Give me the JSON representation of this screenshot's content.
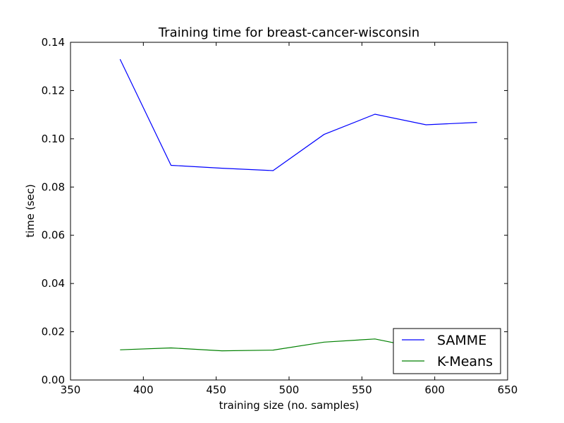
{
  "chart_data": {
    "type": "line",
    "title": "Training time for breast-cancer-wisconsin",
    "xlabel": "training size (no. samples)",
    "ylabel": "time (sec)",
    "xlim": [
      350,
      650
    ],
    "ylim": [
      0,
      0.14
    ],
    "x_ticks": [
      350,
      400,
      450,
      500,
      550,
      600,
      650
    ],
    "x_tick_labels": [
      "350",
      "400",
      "450",
      "500",
      "550",
      "600",
      "650"
    ],
    "y_ticks": [
      0.0,
      0.02,
      0.04,
      0.06,
      0.08,
      0.1,
      0.12,
      0.14
    ],
    "y_tick_labels": [
      "0.00",
      "0.02",
      "0.04",
      "0.06",
      "0.08",
      "0.10",
      "0.12",
      "0.14"
    ],
    "grid": false,
    "legend_position": "lower-right",
    "x": [
      384,
      419,
      454,
      489,
      524,
      559,
      594,
      629
    ],
    "series": [
      {
        "name": "SAMME",
        "color": "#0000ff",
        "values": [
          0.133,
          0.089,
          0.0878,
          0.0868,
          0.1018,
          0.1102,
          0.1058,
          0.1068
        ]
      },
      {
        "name": "K-Means",
        "color": "#008000",
        "values": [
          0.0125,
          0.0133,
          0.0121,
          0.0124,
          0.0157,
          0.017,
          0.0127,
          0.0125
        ]
      }
    ]
  }
}
